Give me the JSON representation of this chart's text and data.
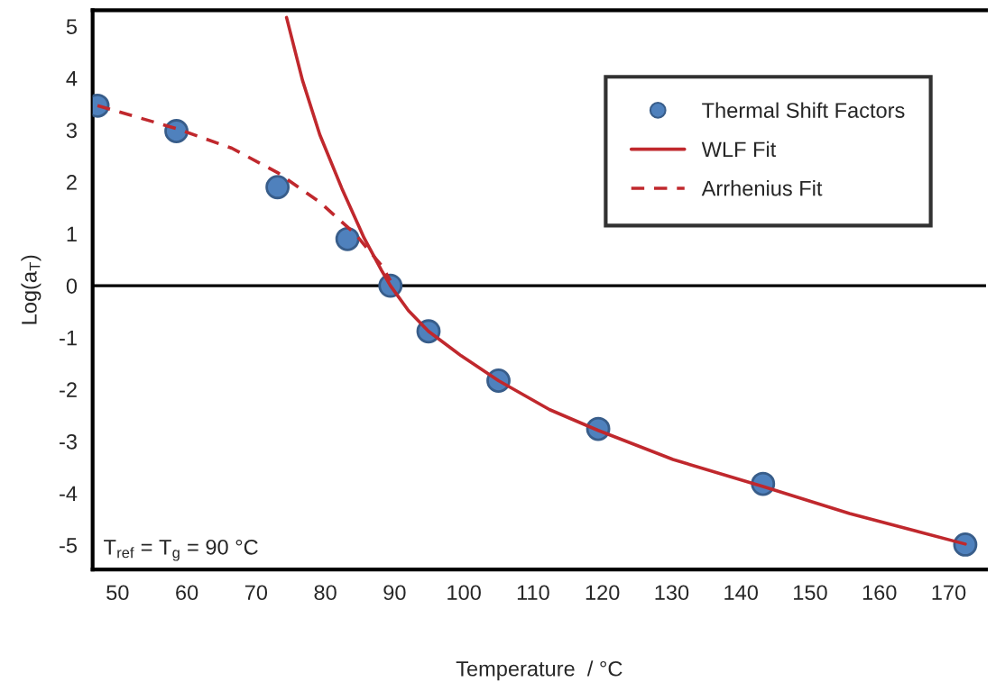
{
  "chart_data": {
    "type": "scatter",
    "xlabel": "Temperature  / °C",
    "ylabel": "Log(a$_{T}$)",
    "xlim": [
      46.4,
      175.4
    ],
    "ylim": [
      -5.47,
      5.31
    ],
    "xticks": [
      50,
      60,
      70,
      80,
      90,
      100,
      110,
      120,
      130,
      140,
      150,
      160,
      170
    ],
    "yticks": [
      5,
      4,
      3,
      2,
      1,
      0,
      {
        "value": -1,
        "label": "-1"
      },
      {
        "value": -2,
        "label": "-2"
      },
      {
        "value": -3,
        "label": "-3"
      },
      {
        "value": -4,
        "label": "-4"
      },
      {
        "value": -5,
        "label": "-5"
      }
    ],
    "series": [
      {
        "name": "Thermal Shift Factors",
        "marker": "circle",
        "color": "#4f81bd",
        "x": [
          47.1,
          58.5,
          73.1,
          83.2,
          89.4,
          94.9,
          105.0,
          119.4,
          143.2,
          172.4
        ],
        "values": [
          3.47,
          2.98,
          1.9,
          0.9,
          0,
          -0.88,
          -1.83,
          -2.76,
          -3.82,
          -4.99
        ]
      },
      {
        "name": "WLF Fit",
        "type": "line",
        "line_style": "solid",
        "color": "#c0282d",
        "x": [
          74.4,
          76.7,
          79.2,
          82.4,
          85.6,
          88.1,
          89.4,
          92.0,
          94.9,
          99.6,
          105.0,
          112.4,
          119.4,
          130.2,
          143.2,
          155.7,
          172.4
        ],
        "values": [
          5.17,
          3.96,
          2.91,
          1.87,
          0.92,
          0.3,
          0,
          -0.48,
          -0.88,
          -1.35,
          -1.83,
          -2.39,
          -2.79,
          -3.35,
          -3.87,
          -4.39,
          -4.98
        ]
      },
      {
        "name": "Arrhenius Fit",
        "type": "line",
        "line_style": "dashed",
        "color": "#c0282d",
        "x": [
          47.1,
          58.5,
          66.5,
          73.1,
          79.2,
          84.3,
          88.1,
          89.4
        ],
        "values": [
          3.47,
          3.03,
          2.65,
          2.18,
          1.61,
          1.0,
          0.39,
          0.1
        ]
      }
    ],
    "ref_lines": [
      {
        "axis": "y",
        "value": 0,
        "color": "#000000"
      }
    ],
    "annotations": [
      "T$_{ref}$ = T$_{g}$ = 90 °C"
    ],
    "legend": "top right",
    "grid": false
  }
}
